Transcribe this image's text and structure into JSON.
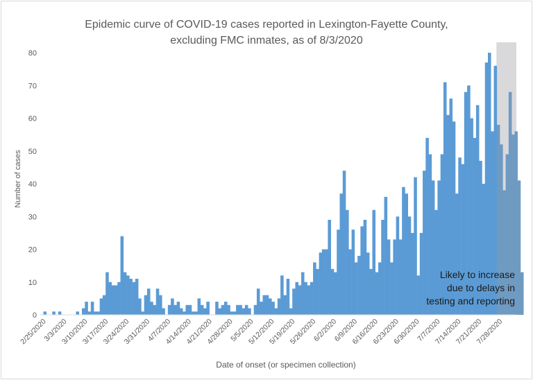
{
  "chart_data": {
    "type": "bar",
    "title_line1": "Epidemic curve of COVID-19 cases reported in Lexington-Fayette County,",
    "title_line2": "excluding FMC inmates, as of 8/3/2020",
    "xlabel": "Date of onset (or specimen collection)",
    "ylabel": "Number of cases",
    "ylim": [
      0,
      80
    ],
    "yticks": [
      "0",
      "10",
      "20",
      "30",
      "40",
      "50",
      "60",
      "70",
      "80"
    ],
    "xticks": [
      "2/25/2020",
      "3/3/2020",
      "3/10/2020",
      "3/17/2020",
      "3/24/2020",
      "3/31/2020",
      "4/7/2020",
      "4/14/2020",
      "4/21/2020",
      "4/28/2020",
      "5/5/2020",
      "5/12/2020",
      "5/19/2020",
      "5/26/2020",
      "6/2/2020",
      "6/9/2020",
      "6/16/2020",
      "6/23/2020",
      "6/30/2020",
      "7/7/2020",
      "7/14/2020",
      "7/21/2020",
      "7/28/2020"
    ],
    "start_date": "2/25/2020",
    "values": [
      1,
      0,
      0,
      1,
      0,
      1,
      0,
      0,
      0,
      0,
      0,
      1,
      0,
      2,
      4,
      1,
      4,
      1,
      1,
      5,
      6,
      13,
      10,
      9,
      9,
      10,
      24,
      13,
      12,
      11,
      10,
      11,
      5,
      1,
      6,
      8,
      4,
      3,
      8,
      6,
      2,
      0,
      3,
      5,
      3,
      4,
      2,
      1,
      3,
      3,
      1,
      1,
      5,
      3,
      2,
      4,
      0,
      0,
      4,
      2,
      3,
      4,
      3,
      1,
      1,
      3,
      3,
      2,
      3,
      2,
      0,
      3,
      8,
      4,
      6,
      6,
      5,
      4,
      2,
      5,
      12,
      6,
      11,
      2,
      8,
      10,
      9,
      13,
      10,
      9,
      10,
      16,
      14,
      19,
      20,
      20,
      29,
      14,
      13,
      26,
      37,
      44,
      32,
      20,
      26,
      16,
      18,
      27,
      29,
      19,
      14,
      32,
      13,
      16,
      29,
      36,
      23,
      16,
      23,
      30,
      23,
      39,
      37,
      30,
      25,
      42,
      12,
      25,
      44,
      54,
      49,
      41,
      32,
      41,
      49,
      71,
      61,
      66,
      59,
      37,
      48,
      46,
      68,
      70,
      60,
      54,
      64,
      47,
      40,
      77,
      80,
      56,
      76,
      58,
      52,
      38,
      49,
      68,
      55,
      56,
      41,
      13
    ],
    "shaded_region": {
      "from_date": "7/27/2020",
      "to_date": "8/3/2020",
      "color": "#d9d9db"
    },
    "bar_color": "#5b9bd5",
    "annotation_lines": [
      "Likely to increase",
      "due to delays in",
      "testing and reporting"
    ],
    "grid": false,
    "legend": "none"
  }
}
